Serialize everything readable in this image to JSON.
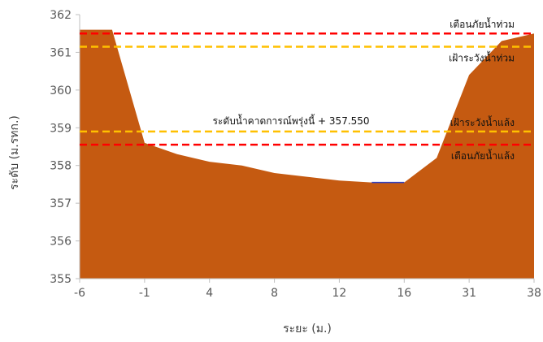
{
  "chart_data": {
    "type": "area",
    "title": "",
    "xlabel": "ระยะ (ม.)",
    "ylabel": "ระดับ (ม.รทก.)",
    "ylim": [
      355,
      362
    ],
    "yticks": [
      "355",
      "356",
      "357",
      "358",
      "359",
      "360",
      "361",
      "362"
    ],
    "xticks": [
      "-6",
      "-1",
      "4",
      "8",
      "12",
      "16",
      "31",
      "38"
    ],
    "x_positions": [
      0,
      1,
      2,
      3,
      4,
      5,
      6,
      7
    ],
    "grid": false,
    "series": [
      {
        "values": [
          [
            0.0,
            361.6
          ],
          [
            0.5,
            361.6
          ],
          [
            1.0,
            358.6
          ],
          [
            1.5,
            358.3
          ],
          [
            2.0,
            358.1
          ],
          [
            2.5,
            358.0
          ],
          [
            3.0,
            357.8
          ],
          [
            3.5,
            357.7
          ],
          [
            4.0,
            357.6
          ],
          [
            4.5,
            357.55
          ],
          [
            5.0,
            357.55
          ],
          [
            5.5,
            358.2
          ],
          [
            6.0,
            360.4
          ],
          [
            6.5,
            361.3
          ],
          [
            7.0,
            361.5
          ]
        ],
        "color": "#c55a11"
      }
    ],
    "water_line": {
      "x": [
        4.5,
        5.0
      ],
      "y": 357.55,
      "color": "#2f3fbf"
    },
    "reference_lines": [
      {
        "label": "เตือนภัยน้ำท่วม",
        "value": 361.5,
        "color": "#ff0000",
        "style": "dashed"
      },
      {
        "label": "เฝ้าระวังน้ำท่วม",
        "value": 361.15,
        "color": "#ffc000",
        "style": "dashed"
      },
      {
        "label": "เฝ้าระวังน้ำแล้ง",
        "value": 358.9,
        "color": "#ffc000",
        "style": "dashed"
      },
      {
        "label": "เตือนภัยน้ำแล้ง",
        "value": 358.55,
        "color": "#ff0000",
        "style": "dashed"
      }
    ],
    "forecast_label": "ระดับน้ำคาดการณ์พรุ่งนี้ + 357.550"
  }
}
